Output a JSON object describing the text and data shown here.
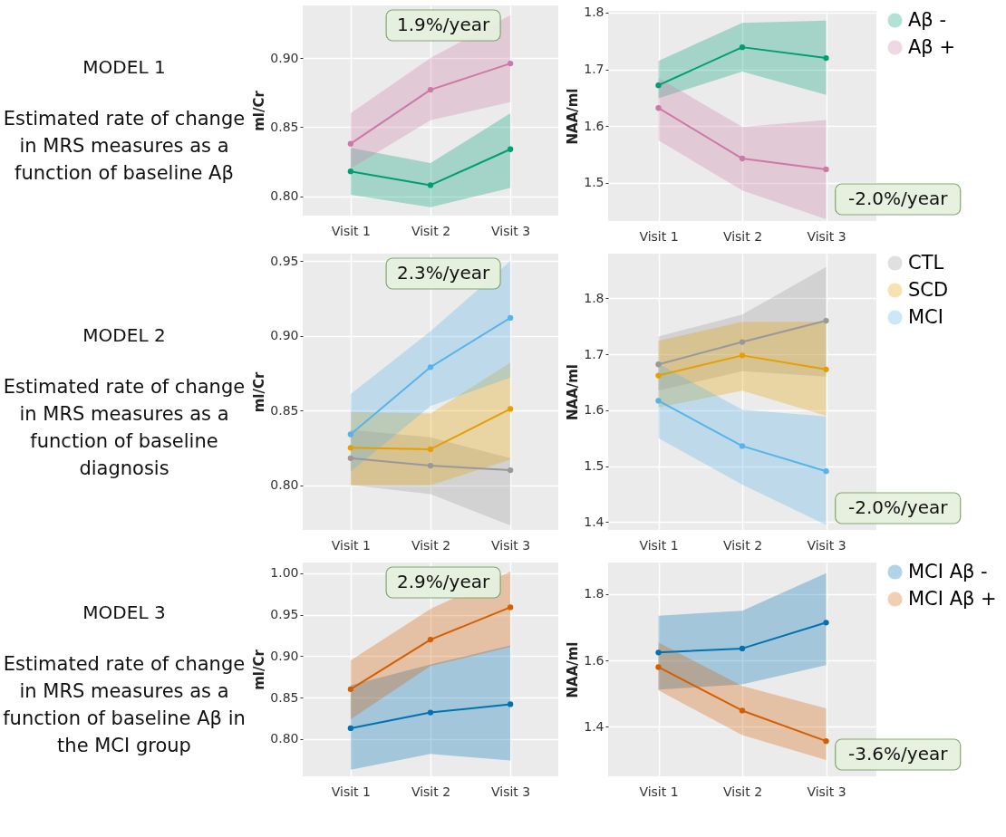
{
  "chart_data": [
    {
      "type": "line",
      "title": "MODEL 1",
      "subtitle": "Estimated rate of change in MRS measures as a function of baseline Aβ",
      "ylabel": "ml/Cr",
      "categories": [
        "Visit 1",
        "Visit 2",
        "Visit 3"
      ],
      "ylim": [
        0.786,
        0.938
      ],
      "yticks": [
        {
          "value": 0.8,
          "label": "0.80"
        },
        0.85,
        {
          "value": 0.9,
          "label": "0.90"
        }
      ],
      "grid": true,
      "marker": "circle",
      "annotations": [
        "1.9%/year"
      ],
      "series": [
        {
          "color": "#009e73",
          "values": [
            0.818,
            0.808,
            0.834
          ],
          "lower": [
            0.801,
            0.792,
            0.806
          ],
          "upper": [
            0.835,
            0.824,
            0.86
          ]
        },
        {
          "color": "#cc79a7",
          "values": [
            0.838,
            0.877,
            0.896
          ],
          "lower": [
            0.82,
            0.855,
            0.868
          ],
          "upper": [
            0.86,
            0.9,
            0.931
          ]
        }
      ]
    },
    {
      "type": "line",
      "ylabel": "NAA/ml",
      "categories": [
        "Visit 1",
        "Visit 2",
        "Visit 3"
      ],
      "ylim": [
        1.433,
        1.803
      ],
      "yticks": [
        1.5,
        1.6,
        1.7,
        1.8
      ],
      "grid": true,
      "marker": "circle",
      "legend": "right",
      "annotations": [
        "-2.0%/year"
      ],
      "series": [
        {
          "name": "Aβ -",
          "color": "#009e73",
          "values": [
            1.672,
            1.739,
            1.72
          ],
          "lower": [
            1.649,
            1.696,
            1.655
          ],
          "upper": [
            1.715,
            1.782,
            1.786
          ]
        },
        {
          "name": "Aβ +",
          "color": "#cc79a7",
          "values": [
            1.632,
            1.543,
            1.524
          ],
          "lower": [
            1.575,
            1.487,
            1.436
          ],
          "upper": [
            1.685,
            1.599,
            1.611
          ]
        }
      ]
    },
    {
      "type": "line",
      "title": "MODEL 2",
      "subtitle": "Estimated rate of change in MRS measures as a function of baseline diagnosis",
      "ylabel": "ml/Cr",
      "categories": [
        "Visit 1",
        "Visit 2",
        "Visit 3"
      ],
      "ylim": [
        0.77,
        0.955
      ],
      "yticks": [
        {
          "value": 0.8,
          "label": "0.80"
        },
        0.85,
        {
          "value": 0.9,
          "label": "0.90"
        },
        0.95
      ],
      "grid": true,
      "marker": "circle",
      "annotations": [
        "2.3%/year"
      ],
      "series": [
        {
          "color": "#999999",
          "values": [
            0.818,
            0.813,
            0.81
          ],
          "lower": [
            0.8,
            0.794,
            0.773
          ],
          "upper": [
            0.837,
            0.832,
            0.818
          ]
        },
        {
          "color": "#e69f00",
          "values": [
            0.825,
            0.824,
            0.851
          ],
          "lower": [
            0.8,
            0.8,
            0.817
          ],
          "upper": [
            0.849,
            0.848,
            0.882
          ]
        },
        {
          "color": "#56b4e9",
          "values": [
            0.834,
            0.879,
            0.912
          ],
          "lower": [
            0.809,
            0.853,
            0.872
          ],
          "upper": [
            0.861,
            0.903,
            0.95
          ]
        }
      ]
    },
    {
      "type": "line",
      "ylabel": "NAA/ml",
      "categories": [
        "Visit 1",
        "Visit 2",
        "Visit 3"
      ],
      "ylim": [
        1.386,
        1.88
      ],
      "yticks": [
        1.4,
        1.5,
        1.6,
        1.7,
        1.8
      ],
      "grid": true,
      "marker": "circle",
      "legend": "right",
      "annotations": [
        "-2.0%/year"
      ],
      "series": [
        {
          "name": "CTL",
          "color": "#999999",
          "values": [
            1.682,
            1.722,
            1.76
          ],
          "lower": [
            1.635,
            1.67,
            1.66
          ],
          "upper": [
            1.732,
            1.771,
            1.856
          ]
        },
        {
          "name": "SCD",
          "color": "#e69f00",
          "values": [
            1.662,
            1.698,
            1.673
          ],
          "lower": [
            1.605,
            1.635,
            1.59
          ],
          "upper": [
            1.724,
            1.758,
            1.758
          ]
        },
        {
          "name": "MCI",
          "color": "#56b4e9",
          "values": [
            1.617,
            1.536,
            1.491
          ],
          "lower": [
            1.55,
            1.467,
            1.395
          ],
          "upper": [
            1.683,
            1.601,
            1.589
          ]
        }
      ]
    },
    {
      "type": "line",
      "title": "MODEL 3",
      "subtitle": "Estimated rate of change in MRS measures as a function of baseline Aβ in the MCI group",
      "ylabel": "ml/Cr",
      "categories": [
        "Visit 1",
        "Visit 2",
        "Visit 3"
      ],
      "ylim": [
        0.755,
        1.013
      ],
      "yticks": [
        {
          "value": 0.8,
          "label": "0.80"
        },
        0.85,
        {
          "value": 0.9,
          "label": "0.90"
        },
        0.95,
        {
          "value": 1,
          "label": "1.00"
        }
      ],
      "grid": true,
      "marker": "circle",
      "annotations": [
        "2.9%/year"
      ],
      "series": [
        {
          "color": "#0072b2",
          "values": [
            0.813,
            0.832,
            0.842
          ],
          "lower": [
            0.763,
            0.782,
            0.774
          ],
          "upper": [
            0.865,
            0.89,
            0.913
          ]
        },
        {
          "color": "#d55e00",
          "values": [
            0.86,
            0.92,
            0.959
          ],
          "lower": [
            0.824,
            0.888,
            0.911
          ],
          "upper": [
            0.895,
            0.957,
            1.002
          ]
        }
      ]
    },
    {
      "type": "line",
      "ylabel": "NAA/ml",
      "categories": [
        "Visit 1",
        "Visit 2",
        "Visit 3"
      ],
      "ylim": [
        1.251,
        1.895
      ],
      "yticks": [
        1.4,
        1.6,
        1.8
      ],
      "grid": true,
      "marker": "circle",
      "legend": "right",
      "annotations": [
        "-3.6%/year"
      ],
      "series": [
        {
          "name": "MCI Aβ -",
          "color": "#0072b2",
          "values": [
            1.624,
            1.636,
            1.714
          ],
          "lower": [
            1.512,
            1.528,
            1.586
          ],
          "upper": [
            1.735,
            1.75,
            1.863
          ]
        },
        {
          "name": "MCI Aβ +",
          "color": "#d55e00",
          "values": [
            1.58,
            1.449,
            1.357
          ],
          "lower": [
            1.51,
            1.375,
            1.3
          ],
          "upper": [
            1.654,
            1.523,
            1.456
          ]
        }
      ]
    }
  ]
}
